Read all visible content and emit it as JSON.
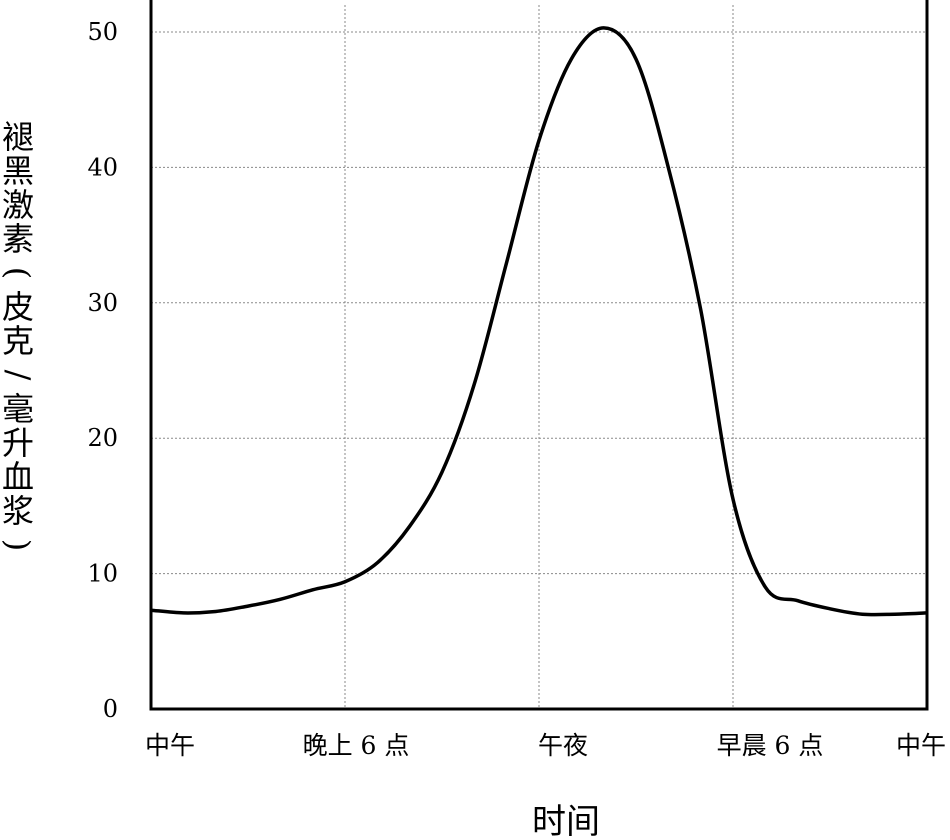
{
  "chart_data": {
    "type": "line",
    "title": "",
    "xlabel": "时间",
    "ylabel": "褪黑激素(皮克/毫升血浆)",
    "x_ticks": [
      "中午",
      "晚上 6 点",
      "午夜",
      "早晨 6 点",
      "中午"
    ],
    "y_ticks": [
      0,
      10,
      20,
      30,
      40,
      50
    ],
    "ylim": [
      0,
      50
    ],
    "xlim": [
      0,
      24
    ],
    "grid": true,
    "series": [
      {
        "x": [
          0,
          1,
          2,
          3,
          4,
          5,
          6,
          7,
          8,
          9,
          10,
          11,
          12,
          13,
          14,
          15,
          16,
          17,
          18,
          19,
          20,
          21,
          22,
          23,
          24
        ],
        "y": [
          7.3,
          7.1,
          7.2,
          7.6,
          8.1,
          8.8,
          9.4,
          10.8,
          13.5,
          17.5,
          24.0,
          33.0,
          42.0,
          48.0,
          50.3,
          48.0,
          40.0,
          29.5,
          15.5,
          9.0,
          8.0,
          7.4,
          7.0,
          7.0,
          7.1
        ]
      }
    ],
    "colors": {
      "line": "#000000",
      "grid": "#8a8a8a",
      "axis": "#000000"
    }
  }
}
